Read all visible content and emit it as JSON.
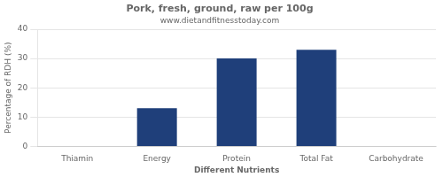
{
  "chart_data": {
    "type": "bar",
    "title": "Pork, fresh, ground, raw per 100g",
    "subtitle": "www.dietandfitnesstoday.com",
    "xlabel": "Different Nutrients",
    "ylabel": "Percentage of RDH (%)",
    "categories": [
      "Thiamin",
      "Energy",
      "Protein",
      "Total Fat",
      "Carbohydrate"
    ],
    "values": [
      0,
      13,
      30,
      33,
      0
    ],
    "color": "#1F3F7A",
    "ylim": [
      0,
      40
    ],
    "yticks": [
      0,
      10,
      20,
      30,
      40
    ],
    "grid": true
  }
}
